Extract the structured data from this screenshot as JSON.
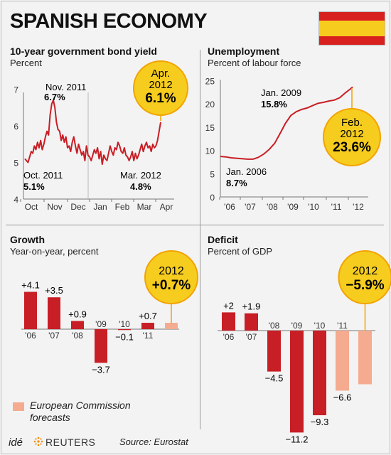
{
  "header": {
    "title": "SPANISH ECONOMY"
  },
  "flag": {
    "colors": [
      "#d8201f",
      "#f6cd1f",
      "#d8201f"
    ]
  },
  "footer": {
    "logo_ide": "idé",
    "logo_reuters": "REUTERS",
    "source": "Source: Eurostat"
  },
  "legend": {
    "swatch_color": "#f4ab90",
    "label": "European Commission\nforecasts"
  },
  "colors": {
    "bar": "#c81e25",
    "forecast": "#f4ab90",
    "line": "#c81e25",
    "bubble": "#f6cd1f",
    "bubble_ring": "#f2a300"
  },
  "chart_data": [
    {
      "id": "bond",
      "type": "line",
      "title": "10-year government bond yield",
      "subtitle": "Percent",
      "x_ticks": [
        "Oct",
        "Nov",
        "Dec",
        "Jan",
        "Feb",
        "Mar",
        "Apr"
      ],
      "ylim": [
        4,
        7.4
      ],
      "y_ticks": [
        "4",
        "5",
        "6",
        "7"
      ],
      "series_approx": [
        5.1,
        5.05,
        5.0,
        5.15,
        5.3,
        5.25,
        5.45,
        5.35,
        5.55,
        5.4,
        5.6,
        5.35,
        5.5,
        5.7,
        5.85,
        5.75,
        6.3,
        6.6,
        6.7,
        6.5,
        6.1,
        5.9,
        5.85,
        5.6,
        5.75,
        5.55,
        5.7,
        5.4,
        5.45,
        5.3,
        5.55,
        5.7,
        5.45,
        5.25,
        5.5,
        5.35,
        5.2,
        5.3,
        5.05,
        5.45,
        5.2,
        5.15,
        5.05,
        5.2,
        5.35,
        5.25,
        5.4,
        5.1,
        5.3,
        4.95,
        5.2,
        5.1,
        5.05,
        5.25,
        5.45,
        5.3,
        5.2,
        5.4,
        5.35,
        5.55,
        5.45,
        5.3,
        5.25,
        5.4,
        5.2,
        5.15,
        5.05,
        5.15,
        5.3,
        5.05,
        5.25,
        5.1,
        5.2,
        5.35,
        5.5,
        5.3,
        5.45,
        5.55,
        5.4,
        5.45,
        5.3,
        5.5,
        5.4,
        5.45,
        5.6,
        5.85,
        6.1
      ],
      "annotations": [
        {
          "date": "Nov. 2011",
          "value": "6.7%"
        },
        {
          "date": "Oct. 2011",
          "value": "5.1%"
        },
        {
          "date": "Mar. 2012",
          "value": "4.8%"
        }
      ],
      "highlight": {
        "date": "Apr.",
        "date2": "2012",
        "value": "6.1%"
      }
    },
    {
      "id": "unemployment",
      "type": "line",
      "title": "Unemployment",
      "subtitle": "Percent of labour force",
      "x_ticks": [
        "'06",
        "'07",
        "'08",
        "'09",
        "'10",
        "'11",
        "'12"
      ],
      "ylim": [
        0,
        25
      ],
      "y_ticks": [
        "0",
        "5",
        "10",
        "15",
        "20",
        "25"
      ],
      "x": [
        2006.0,
        2006.25,
        2006.5,
        2006.75,
        2007.0,
        2007.25,
        2007.5,
        2007.75,
        2008.0,
        2008.25,
        2008.5,
        2008.75,
        2009.0,
        2009.25,
        2009.5,
        2009.75,
        2010.0,
        2010.25,
        2010.5,
        2010.75,
        2011.0,
        2011.25,
        2011.5,
        2011.75,
        2012.0,
        2012.1
      ],
      "values": [
        8.7,
        8.6,
        8.4,
        8.3,
        8.2,
        8.1,
        8.1,
        8.5,
        9.2,
        10.2,
        11.5,
        13.6,
        15.8,
        17.5,
        18.3,
        18.8,
        19.1,
        19.6,
        20.1,
        20.3,
        20.6,
        20.8,
        21.3,
        22.3,
        23.2,
        23.6
      ],
      "annotations": [
        {
          "date": "Jan. 2009",
          "value": "15.8%"
        },
        {
          "date": "Jan. 2006",
          "value": "8.7%"
        }
      ],
      "highlight": {
        "date": "Feb.",
        "date2": "2012",
        "value": "23.6%"
      }
    },
    {
      "id": "growth",
      "type": "bar",
      "title": "Growth",
      "subtitle": "Year-on-year, percent",
      "categories": [
        "'06",
        "'07",
        "'08",
        "'09",
        "'10",
        "'11",
        "2012"
      ],
      "values": [
        4.1,
        3.5,
        0.9,
        -3.7,
        -0.1,
        0.7,
        0.7
      ],
      "labels": [
        "+4.1",
        "+3.5",
        "+0.9",
        "−3.7",
        "−0.1",
        "+0.7",
        ""
      ],
      "forecast": [
        false,
        false,
        false,
        false,
        false,
        false,
        true
      ],
      "highlight": {
        "date": "2012",
        "value": "+0.7%"
      }
    },
    {
      "id": "deficit",
      "type": "bar",
      "title": "Deficit",
      "subtitle": "Percent of GDP",
      "categories": [
        "'06",
        "'07",
        "'08",
        "'09",
        "'10",
        "'11",
        "2012"
      ],
      "values": [
        2,
        1.9,
        -4.5,
        -11.2,
        -9.3,
        -6.6,
        -5.9
      ],
      "labels": [
        "+2",
        "+1.9",
        "−4.5",
        "−11.2",
        "−9.3",
        "−6.6",
        ""
      ],
      "forecast": [
        false,
        false,
        false,
        false,
        false,
        true,
        true
      ],
      "highlight": {
        "date": "2012",
        "value": "−5.9%"
      }
    }
  ]
}
